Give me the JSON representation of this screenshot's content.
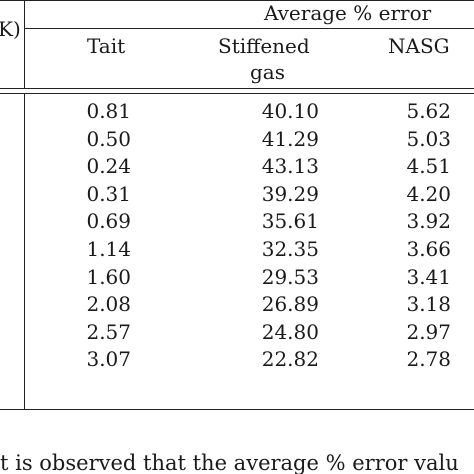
{
  "table": {
    "corner_fragment": "K)",
    "group_header": "Average % error",
    "columns": [
      {
        "label_line1": "Tait",
        "label_line2": ""
      },
      {
        "label_line1": "Stiffened",
        "label_line2": "gas"
      },
      {
        "label_line1": "NASG",
        "label_line2": ""
      }
    ],
    "rows": [
      [
        "0.81",
        "40.10",
        "5.62"
      ],
      [
        "0.50",
        "41.29",
        "5.03"
      ],
      [
        "0.24",
        "43.13",
        "4.51"
      ],
      [
        "0.31",
        "39.29",
        "4.20"
      ],
      [
        "0.69",
        "35.61",
        "3.92"
      ],
      [
        "1.14",
        "32.35",
        "3.66"
      ],
      [
        "1.60",
        "29.53",
        "3.41"
      ],
      [
        "2.08",
        "26.89",
        "3.18"
      ],
      [
        "2.57",
        "24.80",
        "2.97"
      ],
      [
        "3.07",
        "22.82",
        "2.78"
      ]
    ]
  },
  "caption": {
    "text": "t is observed that the average % error valu"
  }
}
